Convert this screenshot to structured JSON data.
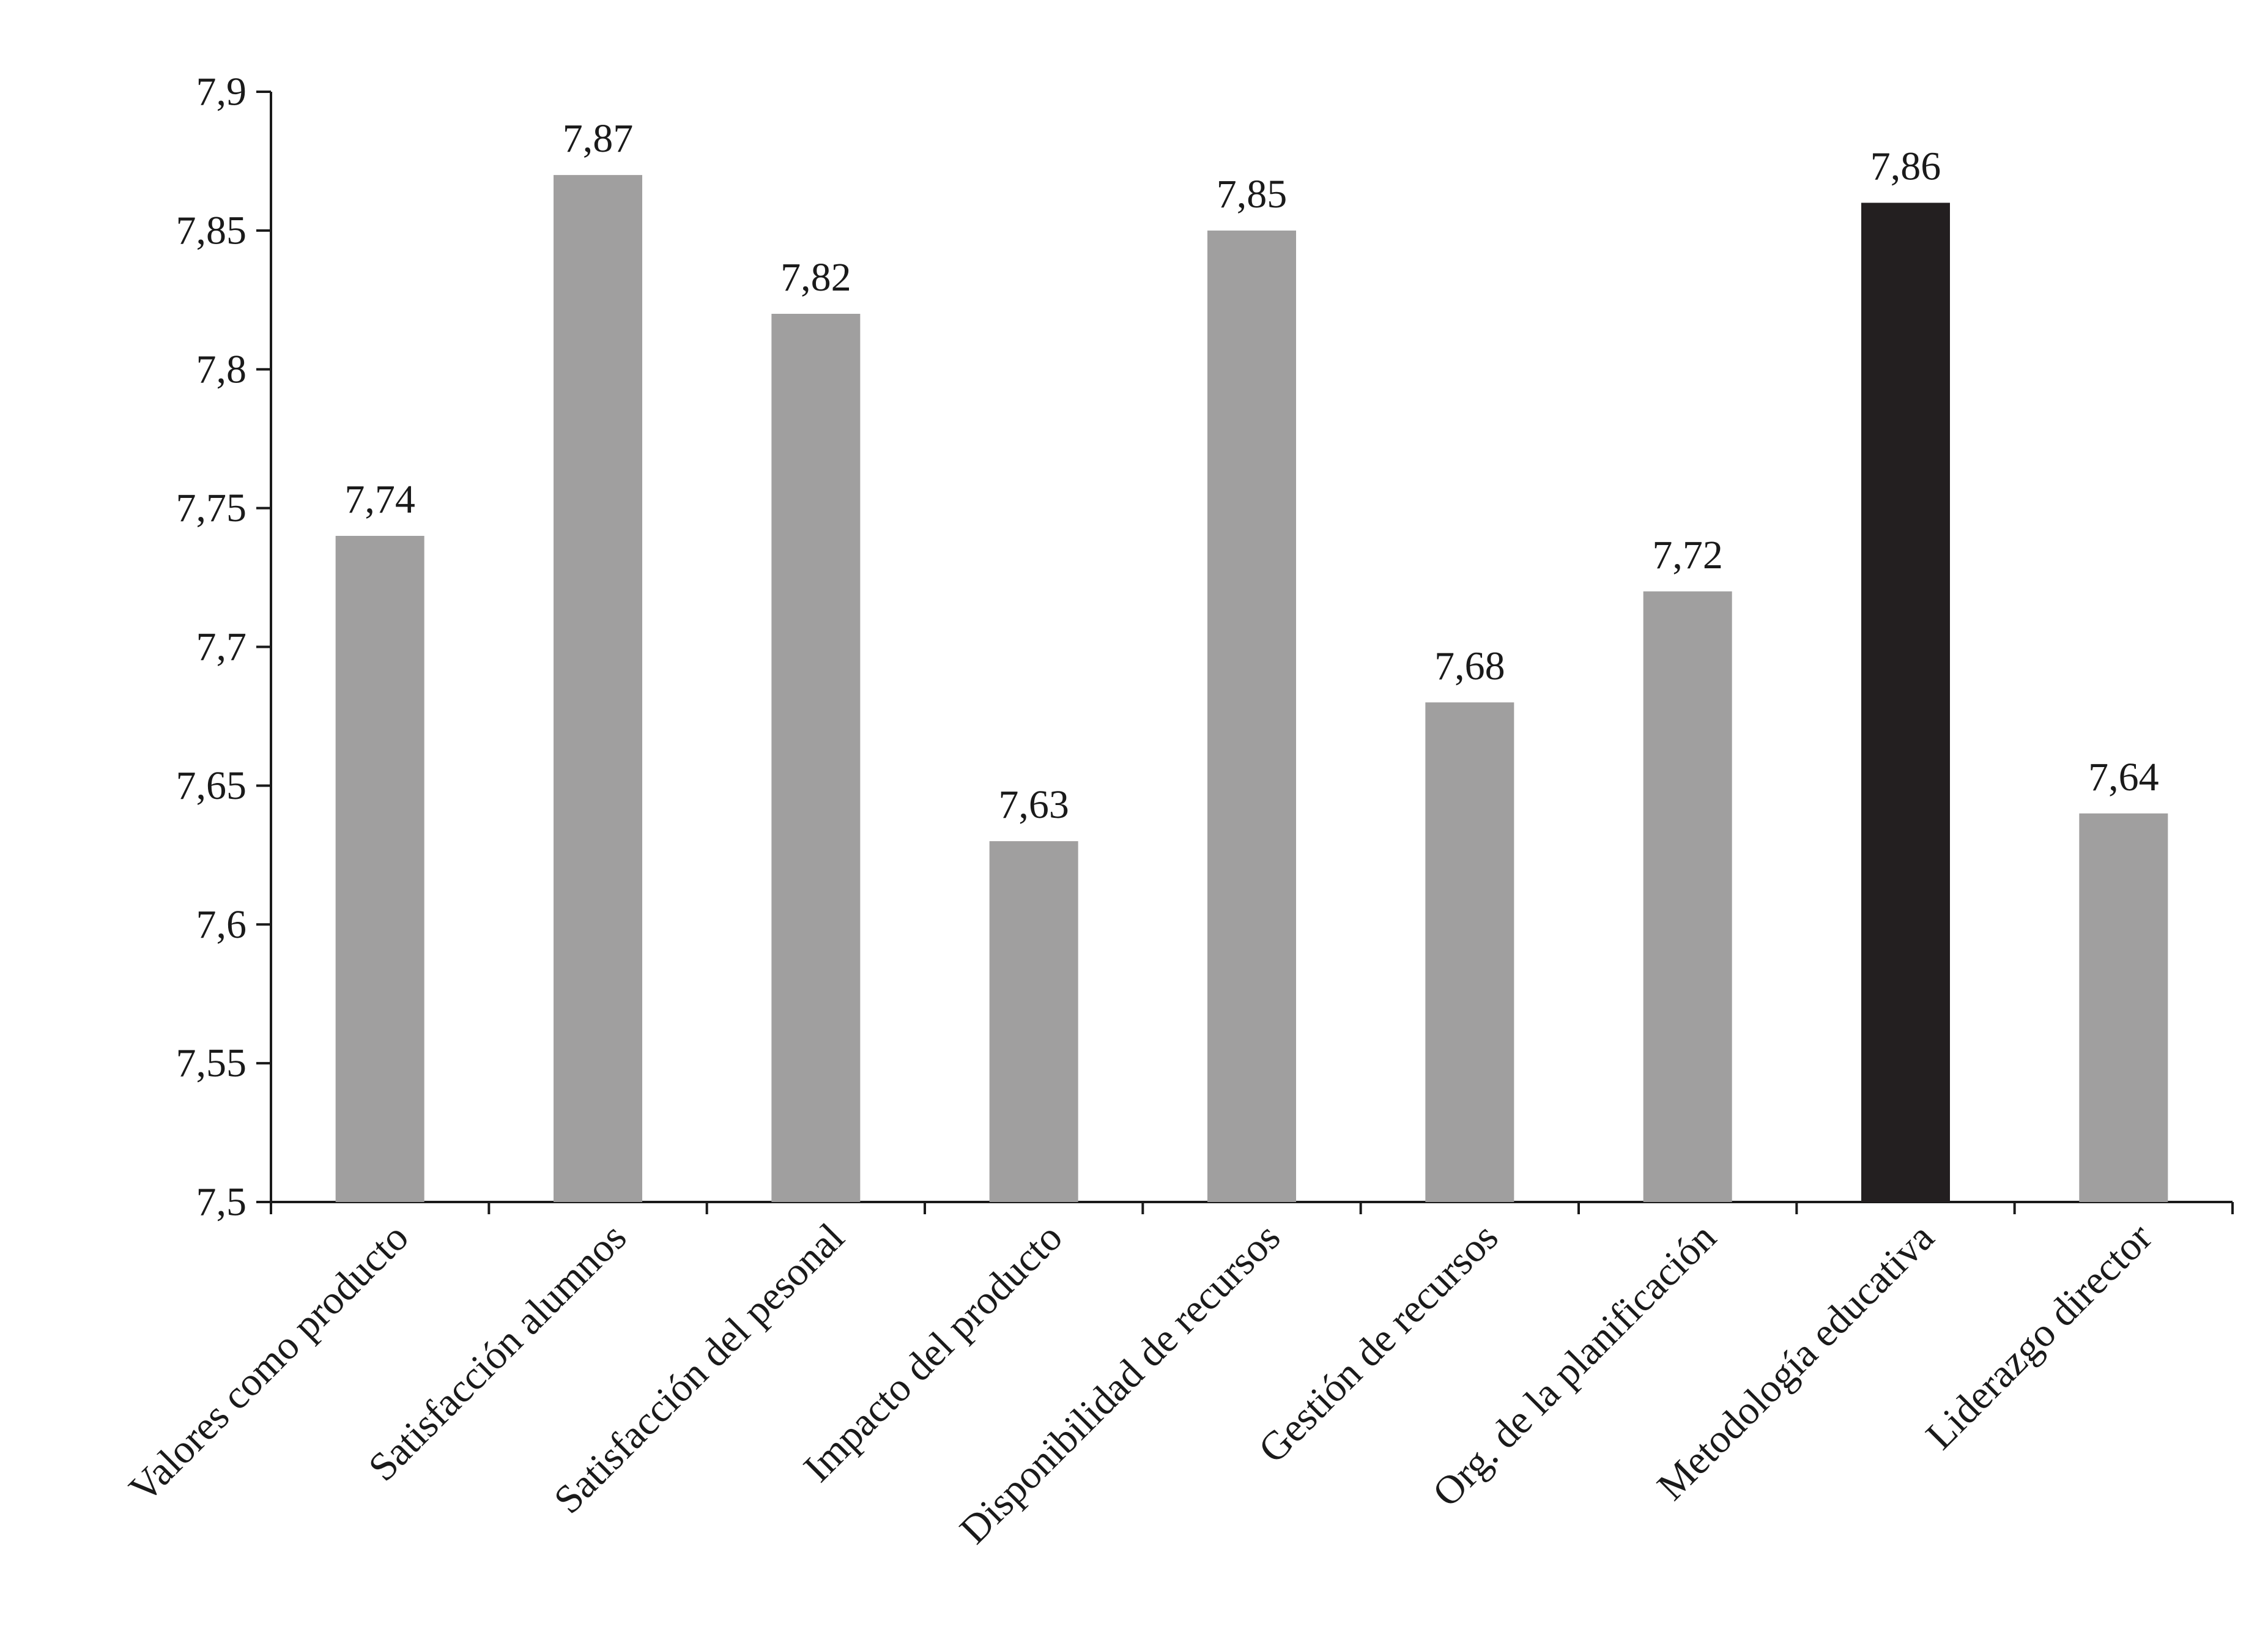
{
  "chart_data": {
    "type": "bar",
    "title": "",
    "xlabel": "",
    "ylabel": "",
    "ylim": [
      7.5,
      7.9
    ],
    "yticks": [
      7.5,
      7.55,
      7.6,
      7.65,
      7.7,
      7.75,
      7.8,
      7.85,
      7.9
    ],
    "ytick_labels": [
      "7,5",
      "7,55",
      "7,6",
      "7,65",
      "7,7",
      "7,75",
      "7,8",
      "7,85",
      "7,9"
    ],
    "grid": false,
    "legend": "none",
    "categories": [
      "Valores como producto",
      "Satisfacción alumnos",
      "Satisfacción del pesonal",
      "Impacto del producto",
      "Disponibilidad de recursos",
      "Gestión de recursos",
      "Org. de la planificación",
      "Metodología educativa",
      "Liderazgo director"
    ],
    "values": [
      7.74,
      7.87,
      7.82,
      7.63,
      7.85,
      7.68,
      7.72,
      7.86,
      7.64
    ],
    "value_labels": [
      "7,74",
      "7,87",
      "7,82",
      "7,63",
      "7,85",
      "7,68",
      "7,72",
      "7,86",
      "7,64"
    ],
    "bar_colors": [
      "#a09f9f",
      "#a09f9f",
      "#a09f9f",
      "#a09f9f",
      "#a09f9f",
      "#a09f9f",
      "#a09f9f",
      "#231f20",
      "#a09f9f"
    ]
  }
}
